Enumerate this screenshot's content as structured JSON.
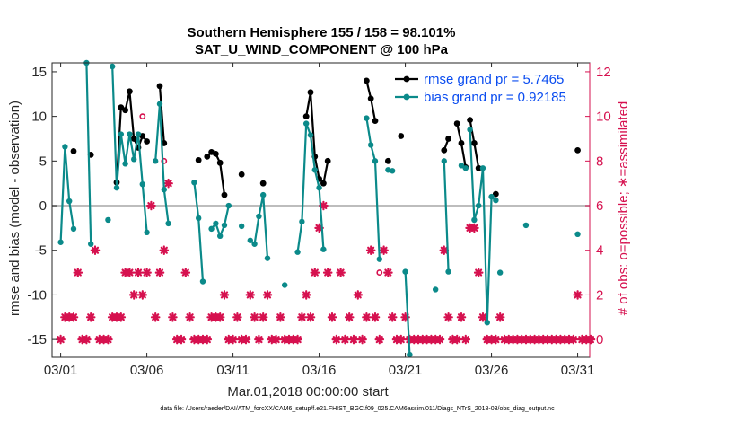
{
  "chart_data": {
    "type": "line",
    "title_line1": "Southern Hemisphere 155 / 158 = 98.101%",
    "title_line2": "SAT_U_WIND_COMPONENT @ 100 hPa",
    "ylabel": "rmse and bias (model - observation)",
    "y2label": "# of obs: o=possible; ∗=assimilated",
    "xlabel": "Mar.01,2018 00:00:00 start",
    "footer": "data file: /Users/raeder/DAI/ATM_forcXX/CAM6_setup/f.e21.FHIST_BGC.f09_025.CAM6assim.011/Diags_NTrS_2018-03/obs_diag_output.nc",
    "xlim": [
      0.5,
      31.7
    ],
    "ylim": [
      -17,
      16
    ],
    "y2lim": [
      -0.8,
      12.4
    ],
    "x_ticks": [
      {
        "value": 1,
        "label": "03/01"
      },
      {
        "value": 6,
        "label": "03/06"
      },
      {
        "value": 11,
        "label": "03/11"
      },
      {
        "value": 16,
        "label": "03/16"
      },
      {
        "value": 21,
        "label": "03/21"
      },
      {
        "value": 26,
        "label": "03/26"
      },
      {
        "value": 31,
        "label": "03/31"
      }
    ],
    "y_ticks": [
      -15,
      -10,
      -5,
      0,
      5,
      10,
      15
    ],
    "y2_ticks": [
      0,
      2,
      4,
      6,
      8,
      10,
      12
    ],
    "grid": false,
    "zero_line": true,
    "legend_position": "top-right",
    "series": [
      {
        "name": "rmse grand pr = 5.7465",
        "color": "#000000",
        "axis": "left",
        "segments": [
          [
            [
              1.75,
              6.1
            ]
          ],
          [
            [
              2.75,
              5.7
            ]
          ],
          [
            [
              4.25,
              2.6
            ],
            [
              4.5,
              11.0
            ],
            [
              4.75,
              10.7
            ],
            [
              5.0,
              12.8
            ],
            [
              5.25,
              7.5
            ],
            [
              5.5,
              6.5
            ],
            [
              5.75,
              7.8
            ],
            [
              6.0,
              7.2
            ]
          ],
          [
            [
              6.75,
              13.4
            ],
            [
              7.0,
              7.0
            ]
          ],
          [
            [
              9.0,
              5.1
            ]
          ],
          [
            [
              9.5,
              5.5
            ],
            [
              9.75,
              6.0
            ],
            [
              10.0,
              5.8
            ],
            [
              10.25,
              4.8
            ],
            [
              10.5,
              1.2
            ]
          ],
          [
            [
              11.5,
              3.5
            ]
          ],
          [
            [
              12.75,
              2.5
            ]
          ],
          [
            [
              15.25,
              10.0
            ],
            [
              15.5,
              12.7
            ],
            [
              15.75,
              5.5
            ],
            [
              16.0,
              3.0
            ],
            [
              16.25,
              2.5
            ],
            [
              16.5,
              5.0
            ]
          ],
          [
            [
              18.75,
              14.0
            ],
            [
              19.0,
              12.0
            ],
            [
              19.25,
              9.5
            ]
          ],
          [
            [
              20.0,
              5.0
            ]
          ],
          [
            [
              20.75,
              7.8
            ]
          ],
          [
            [
              23.25,
              6.2
            ],
            [
              23.5,
              7.5
            ]
          ],
          [
            [
              24.0,
              9.2
            ],
            [
              24.25,
              7.0
            ],
            [
              24.5,
              4.3
            ]
          ],
          [
            [
              24.75,
              9.6
            ],
            [
              25.0,
              7.0
            ],
            [
              25.25,
              4.2
            ]
          ],
          [
            [
              26.25,
              1.3
            ]
          ],
          [
            [
              31.0,
              6.2
            ]
          ]
        ]
      },
      {
        "name": "bias grand pr = 0.92185",
        "color": "#0b8a8a",
        "axis": "left",
        "segments": [
          [
            [
              1.0,
              -4.1
            ],
            [
              1.25,
              6.6
            ],
            [
              1.5,
              0.5
            ],
            [
              1.75,
              -2.6
            ]
          ],
          [
            [
              2.5,
              16.0
            ],
            [
              2.75,
              -4.3
            ]
          ],
          [
            [
              3.75,
              -1.6
            ]
          ],
          [
            [
              4.0,
              15.6
            ],
            [
              4.25,
              2.0
            ],
            [
              4.5,
              8.0
            ],
            [
              4.75,
              4.7
            ],
            [
              5.0,
              8.0
            ],
            [
              5.25,
              5.2
            ],
            [
              5.5,
              8.0
            ],
            [
              5.75,
              2.4
            ],
            [
              6.0,
              -3.0
            ]
          ],
          [
            [
              6.5,
              5.0
            ],
            [
              6.75,
              11.4
            ],
            [
              7.0,
              1.8
            ],
            [
              7.25,
              -2.0
            ]
          ],
          [
            [
              8.75,
              2.6
            ],
            [
              9.0,
              -1.4
            ],
            [
              9.25,
              -8.5
            ]
          ],
          [
            [
              9.75,
              -2.6
            ],
            [
              10.0,
              -2.0
            ],
            [
              10.25,
              -3.4
            ],
            [
              10.5,
              -2.2
            ],
            [
              10.75,
              0.0
            ]
          ],
          [
            [
              11.5,
              -2.3
            ]
          ],
          [
            [
              12.0,
              -3.9
            ],
            [
              12.25,
              -4.3
            ],
            [
              12.5,
              -1.2
            ],
            [
              12.75,
              1.2
            ],
            [
              13.0,
              -5.9
            ]
          ],
          [
            [
              14.0,
              -8.9
            ]
          ],
          [
            [
              14.75,
              -5.2
            ],
            [
              15.0,
              -1.8
            ],
            [
              15.25,
              9.2
            ],
            [
              15.5,
              7.9
            ],
            [
              15.75,
              4.0
            ],
            [
              16.0,
              2.0
            ],
            [
              16.25,
              -4.9
            ]
          ],
          [
            [
              18.75,
              9.8
            ],
            [
              19.0,
              6.8
            ],
            [
              19.25,
              5.0
            ],
            [
              19.5,
              -6.0
            ]
          ],
          [
            [
              20.0,
              4.0
            ],
            [
              20.25,
              3.9
            ]
          ],
          [
            [
              21.0,
              -7.4
            ],
            [
              21.25,
              -16.7
            ]
          ],
          [
            [
              22.75,
              -9.4
            ]
          ],
          [
            [
              23.25,
              5.0
            ],
            [
              23.5,
              -7.4
            ]
          ],
          [
            [
              24.25,
              4.5
            ],
            [
              24.5,
              4.2
            ]
          ],
          [
            [
              24.75,
              8.5
            ],
            [
              25.0,
              -1.6
            ],
            [
              25.25,
              0.0
            ],
            [
              25.5,
              4.2
            ],
            [
              25.75,
              -13.1
            ],
            [
              26.0,
              1.0
            ],
            [
              26.25,
              0.6
            ]
          ],
          [
            [
              26.5,
              -7.5
            ]
          ],
          [
            [
              28.0,
              -2.2
            ]
          ],
          [
            [
              31.0,
              -3.2
            ]
          ]
        ]
      }
    ],
    "obs_used": {
      "name": "assimilated",
      "color": "#d6114f",
      "axis": "right",
      "marker": "asterisk",
      "points": [
        [
          1.0,
          0
        ],
        [
          1.25,
          1
        ],
        [
          1.5,
          1
        ],
        [
          1.75,
          1
        ],
        [
          2.0,
          3
        ],
        [
          2.25,
          0
        ],
        [
          2.5,
          0
        ],
        [
          2.75,
          1
        ],
        [
          3.0,
          4
        ],
        [
          3.25,
          0
        ],
        [
          3.5,
          0
        ],
        [
          3.75,
          0
        ],
        [
          4.0,
          1
        ],
        [
          4.25,
          1
        ],
        [
          4.5,
          1
        ],
        [
          4.75,
          3
        ],
        [
          5.0,
          3
        ],
        [
          5.25,
          2
        ],
        [
          5.5,
          3
        ],
        [
          5.75,
          2
        ],
        [
          6.0,
          3
        ],
        [
          6.25,
          6
        ],
        [
          6.5,
          1
        ],
        [
          6.75,
          3
        ],
        [
          7.0,
          4
        ],
        [
          7.25,
          7
        ],
        [
          7.5,
          1
        ],
        [
          7.75,
          0
        ],
        [
          8.0,
          0
        ],
        [
          8.25,
          3
        ],
        [
          8.5,
          1
        ],
        [
          8.75,
          0
        ],
        [
          9.0,
          0
        ],
        [
          9.25,
          0
        ],
        [
          9.5,
          0
        ],
        [
          9.75,
          1
        ],
        [
          10.0,
          1
        ],
        [
          10.25,
          1
        ],
        [
          10.5,
          2
        ],
        [
          10.75,
          0
        ],
        [
          11.0,
          0
        ],
        [
          11.25,
          1
        ],
        [
          11.5,
          0
        ],
        [
          11.75,
          0
        ],
        [
          12.0,
          2
        ],
        [
          12.25,
          1
        ],
        [
          12.5,
          0
        ],
        [
          12.75,
          1
        ],
        [
          13.0,
          2
        ],
        [
          13.25,
          0
        ],
        [
          13.5,
          0
        ],
        [
          13.75,
          1
        ],
        [
          14.0,
          0
        ],
        [
          14.25,
          0
        ],
        [
          14.5,
          0
        ],
        [
          14.75,
          0
        ],
        [
          15.0,
          1
        ],
        [
          15.25,
          2
        ],
        [
          15.5,
          1
        ],
        [
          15.75,
          3
        ],
        [
          16.0,
          5
        ],
        [
          16.25,
          6
        ],
        [
          16.5,
          3
        ],
        [
          16.75,
          1
        ],
        [
          17.0,
          0
        ],
        [
          17.25,
          3
        ],
        [
          17.5,
          0
        ],
        [
          17.75,
          1
        ],
        [
          18.0,
          0
        ],
        [
          18.25,
          2
        ],
        [
          18.5,
          0
        ],
        [
          18.75,
          1
        ],
        [
          19.0,
          4
        ],
        [
          19.25,
          1
        ],
        [
          19.5,
          0
        ],
        [
          19.75,
          4
        ],
        [
          20.0,
          3
        ],
        [
          20.25,
          1
        ],
        [
          20.5,
          0
        ],
        [
          20.75,
          0
        ],
        [
          21.0,
          1
        ],
        [
          21.25,
          0
        ],
        [
          21.5,
          0
        ],
        [
          21.75,
          0
        ],
        [
          22.0,
          0
        ],
        [
          22.25,
          0
        ],
        [
          22.5,
          0
        ],
        [
          22.75,
          0
        ],
        [
          23.0,
          0
        ],
        [
          23.25,
          4
        ],
        [
          23.5,
          1
        ],
        [
          23.75,
          0
        ],
        [
          24.0,
          0
        ],
        [
          24.25,
          1
        ],
        [
          24.5,
          0
        ],
        [
          24.75,
          5
        ],
        [
          25.0,
          5
        ],
        [
          25.25,
          3
        ],
        [
          25.5,
          1
        ],
        [
          25.75,
          0
        ],
        [
          26.0,
          0
        ],
        [
          26.25,
          0
        ],
        [
          26.5,
          1
        ],
        [
          26.75,
          0
        ],
        [
          27.0,
          0
        ],
        [
          27.25,
          0
        ],
        [
          27.5,
          0
        ],
        [
          27.75,
          0
        ],
        [
          28.0,
          0
        ],
        [
          28.25,
          0
        ],
        [
          28.5,
          0
        ],
        [
          28.75,
          0
        ],
        [
          29.0,
          0
        ],
        [
          29.25,
          0
        ],
        [
          29.5,
          0
        ],
        [
          29.75,
          0
        ],
        [
          30.0,
          0
        ],
        [
          30.25,
          0
        ],
        [
          30.5,
          0
        ],
        [
          30.75,
          0
        ],
        [
          31.0,
          2
        ],
        [
          31.25,
          0
        ],
        [
          31.5,
          0
        ],
        [
          31.75,
          0
        ]
      ]
    },
    "obs_possible": {
      "name": "possible",
      "color": "#d6114f",
      "axis": "right",
      "marker": "circle",
      "points": [
        [
          5.75,
          10
        ],
        [
          7.0,
          8
        ],
        [
          19.75,
          4
        ],
        [
          19.5,
          3
        ]
      ]
    }
  }
}
